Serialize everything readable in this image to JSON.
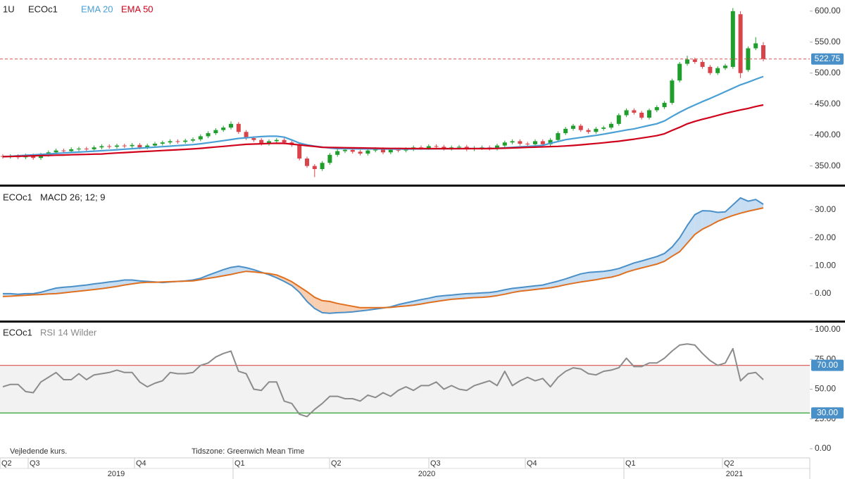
{
  "chart_data": [
    {
      "type": "candlestick",
      "interval": "1U",
      "title": "ECOc1",
      "up_color": "#1f9e2c",
      "down_color": "#d9434a",
      "last_line_color": "#d9534f",
      "badge_color": "#4a90c8",
      "ylim": [
        320,
        618
      ],
      "yticks": [
        {
          "value": 600,
          "label": "600.00"
        },
        {
          "value": 550,
          "label": "550.00"
        },
        {
          "value": 500,
          "label": "500.00"
        },
        {
          "value": 450,
          "label": "450.00"
        },
        {
          "value": 400,
          "label": "400.00"
        },
        {
          "value": 350,
          "label": "350.00"
        }
      ],
      "open": [
        366,
        365,
        366,
        364,
        367,
        363,
        368,
        372,
        375,
        374,
        377,
        378,
        377,
        380,
        382,
        381,
        383,
        382,
        384,
        380,
        383,
        386,
        388,
        390,
        389,
        391,
        393,
        398,
        403,
        408,
        412,
        418,
        405,
        395,
        392,
        386,
        390,
        392,
        388,
        384,
        362,
        350,
        345,
        355,
        368,
        374,
        376,
        373,
        370,
        375,
        377,
        372,
        376,
        375,
        377,
        380,
        379,
        382,
        381,
        378,
        380,
        381,
        377,
        379,
        380,
        378,
        383,
        388,
        390,
        386,
        385,
        390,
        385,
        392,
        403,
        410,
        415,
        408,
        405,
        410,
        412,
        418,
        432,
        440,
        436,
        428,
        440,
        445,
        452,
        488,
        515,
        522,
        518,
        510,
        500,
        508,
        510,
        595,
        505,
        540,
        545
      ],
      "high": [
        369,
        369,
        369,
        370,
        370,
        371,
        375,
        378,
        378,
        380,
        381,
        381,
        383,
        385,
        385,
        386,
        386,
        387,
        387,
        386,
        389,
        391,
        393,
        393,
        394,
        396,
        401,
        406,
        411,
        415,
        422,
        421,
        408,
        398,
        395,
        393,
        395,
        395,
        391,
        387,
        365,
        353,
        358,
        371,
        377,
        379,
        379,
        376,
        378,
        380,
        380,
        379,
        379,
        380,
        383,
        383,
        385,
        385,
        384,
        383,
        384,
        384,
        382,
        383,
        383,
        386,
        391,
        393,
        393,
        389,
        393,
        393,
        395,
        406,
        413,
        418,
        418,
        411,
        413,
        415,
        421,
        435,
        443,
        443,
        439,
        443,
        448,
        455,
        491,
        518,
        528,
        525,
        521,
        513,
        511,
        515,
        605,
        600,
        543,
        558,
        550
      ],
      "low": [
        362,
        362,
        361,
        361,
        360,
        360,
        365,
        369,
        371,
        371,
        374,
        374,
        374,
        377,
        378,
        378,
        379,
        379,
        377,
        377,
        380,
        383,
        385,
        386,
        386,
        388,
        390,
        395,
        400,
        405,
        409,
        402,
        392,
        389,
        383,
        383,
        387,
        385,
        381,
        359,
        347,
        332,
        342,
        352,
        365,
        371,
        370,
        367,
        367,
        372,
        369,
        369,
        372,
        372,
        374,
        376,
        376,
        378,
        375,
        375,
        377,
        374,
        374,
        376,
        375,
        375,
        380,
        385,
        383,
        382,
        382,
        382,
        382,
        389,
        400,
        407,
        405,
        402,
        402,
        407,
        409,
        415,
        429,
        433,
        425,
        425,
        437,
        442,
        449,
        485,
        512,
        515,
        507,
        497,
        497,
        505,
        507,
        492,
        502,
        537,
        519
      ],
      "close": [
        365,
        366,
        364,
        367,
        363,
        368,
        372,
        375,
        374,
        377,
        378,
        377,
        380,
        382,
        381,
        383,
        382,
        384,
        380,
        383,
        386,
        388,
        390,
        389,
        391,
        393,
        398,
        403,
        408,
        412,
        418,
        405,
        395,
        392,
        386,
        390,
        392,
        388,
        384,
        362,
        350,
        345,
        355,
        368,
        374,
        376,
        373,
        370,
        375,
        377,
        372,
        376,
        375,
        377,
        380,
        379,
        382,
        381,
        378,
        380,
        381,
        377,
        379,
        380,
        378,
        383,
        388,
        390,
        386,
        385,
        390,
        385,
        392,
        403,
        410,
        415,
        408,
        405,
        410,
        412,
        418,
        432,
        440,
        436,
        428,
        440,
        445,
        452,
        488,
        515,
        522,
        518,
        510,
        500,
        508,
        512,
        600,
        500,
        540,
        548,
        522.75
      ],
      "series": [
        {
          "name": "EMA 20",
          "color": "#4a9fd5",
          "values": [
            365,
            365.7,
            366.5,
            367.2,
            368,
            368.7,
            369.4,
            370.2,
            370.9,
            371.7,
            372.4,
            373.1,
            373.9,
            374.6,
            375.4,
            376.2,
            377.1,
            377.9,
            378.7,
            379.5,
            380.4,
            381.2,
            382,
            382.9,
            383.7,
            384.5,
            385.8,
            387.5,
            389.2,
            390.9,
            392.7,
            394.5,
            395.5,
            396.5,
            397.5,
            398,
            398,
            396.5,
            392,
            387,
            384,
            382,
            380.5,
            379,
            378,
            378,
            377.8,
            377.6,
            377.5,
            377.4,
            377.4,
            377.3,
            377.3,
            377.3,
            377.4,
            377.5,
            377.6,
            377.7,
            377.8,
            377.9,
            378,
            378,
            378.1,
            378.2,
            378.3,
            378.5,
            379.5,
            380,
            380.8,
            381.5,
            382.3,
            383.3,
            386.6,
            389.5,
            392.5,
            394.3,
            396,
            397.8,
            399.4,
            401.4,
            403.6,
            405.8,
            408,
            410,
            412.8,
            415.5,
            418.2,
            422.7,
            430,
            436.7,
            443,
            448.5,
            454,
            459,
            464.5,
            470,
            475.5,
            481,
            485.3,
            490,
            494.5
          ]
        },
        {
          "name": "EMA 50",
          "color": "#d0021b",
          "values": [
            365,
            365.3,
            365.7,
            366,
            366.4,
            366.7,
            367,
            367.4,
            367.7,
            368.1,
            368.4,
            368.7,
            369.1,
            369.4,
            370.3,
            371,
            371.6,
            372.3,
            373,
            373.6,
            374.3,
            374.9,
            375.6,
            376.2,
            376.9,
            377.6,
            378.5,
            379.6,
            380.6,
            381.7,
            382.8,
            383.9,
            385,
            385.4,
            385.8,
            386.3,
            386.7,
            386.5,
            385.3,
            384,
            382.7,
            381.5,
            380.2,
            379.9,
            379.7,
            379.5,
            379.3,
            379.1,
            378.9,
            378.7,
            378.5,
            378.4,
            378.3,
            378.2,
            378.1,
            378,
            378,
            378,
            378,
            378,
            378,
            378,
            378,
            378,
            378,
            378.3,
            378.7,
            379.2,
            379.6,
            380,
            380.4,
            380.8,
            381.3,
            381.7,
            382.3,
            383.1,
            384.2,
            385.3,
            386.3,
            387.4,
            388.8,
            389.9,
            391.7,
            393.3,
            395.2,
            397,
            398.9,
            402,
            407.5,
            412.5,
            418,
            422,
            425.4,
            428.4,
            431.7,
            435,
            437.8,
            440.5,
            443,
            446,
            448.5
          ]
        }
      ]
    },
    {
      "type": "line",
      "title": "ECOc1",
      "indicator": "MACD 26; 12; 9",
      "fill_colors": {
        "above": "#c6ddf2",
        "below": "#f9cfb2"
      },
      "ylim": [
        -9.6,
        38.3
      ],
      "yticks": [
        {
          "value": 30,
          "label": "30.00"
        },
        {
          "value": 20,
          "label": "20.00"
        },
        {
          "value": 10,
          "label": "10.00"
        },
        {
          "value": 0,
          "label": "0.00"
        }
      ],
      "series": [
        {
          "color": "#4a8fc7",
          "values": [
            0,
            0,
            -0.2,
            0,
            0,
            0.5,
            1.3,
            2,
            2.3,
            2.5,
            2.8,
            3.1,
            3.5,
            3.8,
            4.2,
            4.5,
            4.9,
            4.9,
            4.6,
            4.4,
            4.2,
            4,
            4.2,
            4.4,
            4.6,
            4.9,
            5.5,
            6.6,
            7.6,
            8.6,
            9.4,
            9.8,
            9.3,
            8.6,
            7.7,
            6.8,
            5.7,
            4.4,
            2.9,
            0.5,
            -2.8,
            -5.3,
            -6.8,
            -7,
            -6.8,
            -6.7,
            -6.5,
            -6.2,
            -5.9,
            -5.5,
            -5.1,
            -4.7,
            -3.9,
            -3.3,
            -2.7,
            -2.1,
            -1.6,
            -1,
            -0.7,
            -0.5,
            -0.2,
            0,
            0.1,
            0.3,
            0.4,
            0.8,
            1.4,
            1.9,
            2.2,
            2.5,
            2.8,
            3.1,
            3.8,
            4.5,
            5.3,
            6.2,
            7.1,
            7.6,
            7.8,
            8,
            8.4,
            9,
            10,
            11,
            11.7,
            12.5,
            13.3,
            14.4,
            16.7,
            20,
            24.4,
            28.3,
            29.7,
            29.6,
            29.1,
            29.3,
            31.8,
            34.3,
            33.1,
            33.7,
            32
          ]
        },
        {
          "color": "#e07020",
          "values": [
            -1,
            -0.9,
            -0.7,
            -0.6,
            -0.4,
            -0.3,
            -0.1,
            0,
            0.3,
            0.6,
            0.9,
            1.2,
            1.5,
            1.8,
            2.2,
            2.6,
            3.1,
            3.5,
            3.9,
            4.1,
            4.1,
            4.2,
            4.3,
            4.4,
            4.5,
            4.6,
            5,
            5.5,
            5.9,
            6.4,
            6.9,
            7.5,
            8,
            7.8,
            7.5,
            7.2,
            6.7,
            5.6,
            4.3,
            2.5,
            0.7,
            -1.3,
            -2.5,
            -2.8,
            -3.5,
            -4,
            -4.5,
            -5,
            -5,
            -5,
            -5,
            -4.9,
            -4.6,
            -4.4,
            -4.1,
            -3.7,
            -3.2,
            -2.8,
            -2.4,
            -2,
            -1.8,
            -1.6,
            -1.4,
            -1.3,
            -1.1,
            -0.7,
            -0.2,
            0.4,
            0.9,
            1.2,
            1.5,
            1.8,
            2.1,
            2.6,
            3.2,
            3.7,
            4.2,
            4.6,
            5,
            5.5,
            5.9,
            6.6,
            7.7,
            8.5,
            9.2,
            9.9,
            10.6,
            11.6,
            13.4,
            15,
            18.1,
            21.2,
            23.1,
            24.4,
            25.9,
            27,
            28,
            28.8,
            29.5,
            30.1,
            30.7
          ]
        }
      ]
    },
    {
      "type": "line",
      "title": "ECOc1",
      "indicator": "RSI 14 Wilder",
      "band_color": "#f2f2f2",
      "badge_color": "#4a90c8",
      "ylim": [
        -7.7,
        105.9
      ],
      "yticks": [
        {
          "value": 100,
          "label": "100.00"
        },
        {
          "value": 75,
          "label": "75.00"
        },
        {
          "value": 50,
          "label": "50.00"
        },
        {
          "value": 25,
          "label": "25.00"
        },
        {
          "value": 0,
          "label": "0.00"
        }
      ],
      "levels": [
        {
          "value": 70,
          "label": "70.00",
          "color": "#d9534f"
        },
        {
          "value": 30,
          "label": "30.00",
          "color": "#2ca02c"
        }
      ],
      "series": [
        {
          "color": "#8c8c8c",
          "values": [
            52,
            54,
            54,
            48,
            47,
            56,
            60,
            64,
            58,
            58,
            63,
            58,
            62,
            63,
            64,
            66,
            64,
            64,
            56,
            52,
            55,
            57,
            64,
            63,
            63,
            64,
            70,
            72,
            77,
            80,
            82,
            65,
            63,
            50,
            49,
            56,
            56,
            40,
            38,
            29,
            27,
            33,
            38,
            44,
            44,
            42,
            42,
            40,
            45,
            43,
            47,
            44,
            49,
            52,
            49,
            53,
            53,
            56,
            50,
            53,
            50,
            49,
            53,
            55,
            57,
            53,
            65,
            53,
            57,
            60,
            57,
            59,
            52,
            60,
            65,
            68,
            67,
            63,
            62,
            65,
            66,
            68,
            76,
            69,
            69,
            72,
            72,
            76,
            82,
            87,
            88,
            87,
            80,
            74,
            70,
            72,
            84,
            57,
            63,
            64,
            58
          ]
        }
      ]
    }
  ],
  "footer": {
    "note": "Vejledende kurs.",
    "timezone": "Tidszone: Greenwich Mean Time"
  },
  "time_axis": {
    "quarters": [
      "Q2",
      "Q3",
      "Q4",
      "Q1",
      "Q2",
      "Q3",
      "Q4",
      "Q1",
      "Q2"
    ],
    "years": [
      "2019",
      "2020",
      "2021"
    ]
  }
}
